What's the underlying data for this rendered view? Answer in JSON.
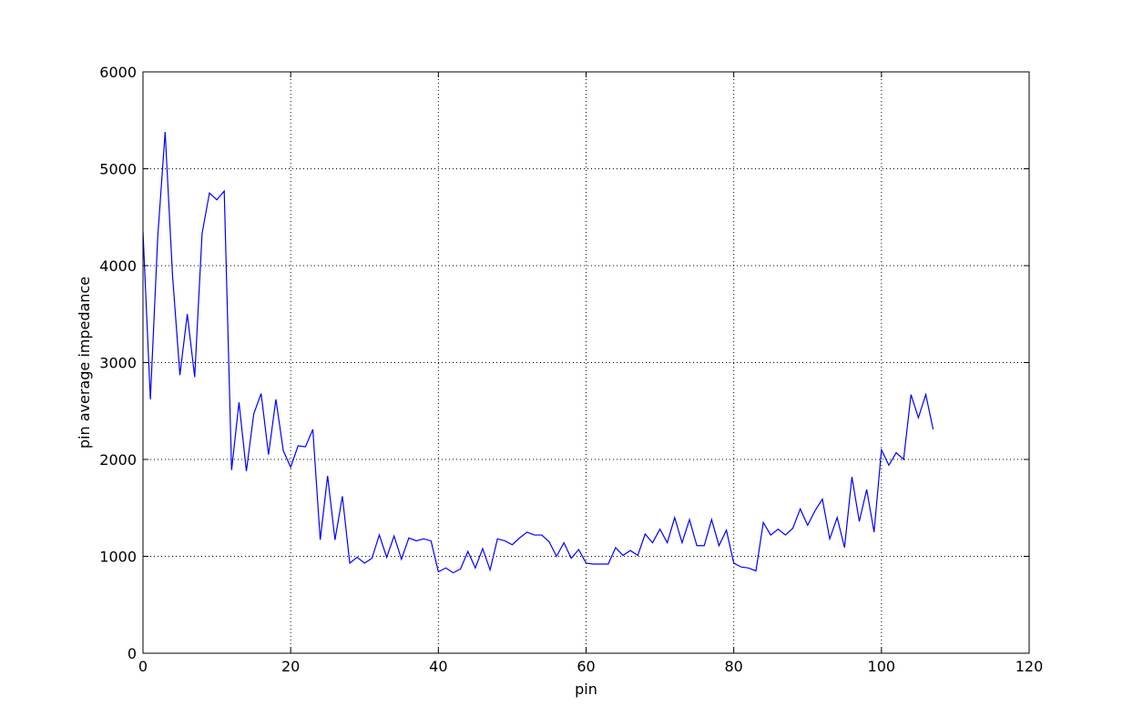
{
  "colors": {
    "series": "#0000ff",
    "axes": "#000000",
    "grid": "#000000",
    "background": "#ffffff"
  },
  "chart_data": {
    "type": "line",
    "title": "",
    "xlabel": "pin",
    "ylabel": "pin average impedance",
    "xlim": [
      0,
      120
    ],
    "ylim": [
      0,
      6000
    ],
    "xticks": [
      0,
      20,
      40,
      60,
      80,
      100,
      120
    ],
    "yticks": [
      0,
      1000,
      2000,
      3000,
      4000,
      5000,
      6000
    ],
    "xtick_labels": [
      "0",
      "20",
      "40",
      "60",
      "80",
      "100",
      "120"
    ],
    "ytick_labels": [
      "0",
      "1000",
      "2000",
      "3000",
      "4000",
      "5000",
      "6000"
    ],
    "grid": true,
    "grid_style": "dotted",
    "legend": "none",
    "series": [
      {
        "color": "#0000ff",
        "x": [
          0,
          1,
          2,
          3,
          4,
          5,
          6,
          7,
          8,
          9,
          10,
          11,
          12,
          13,
          14,
          15,
          16,
          17,
          18,
          19,
          20,
          21,
          22,
          23,
          24,
          25,
          26,
          27,
          28,
          29,
          30,
          31,
          32,
          33,
          34,
          35,
          36,
          37,
          38,
          39,
          40,
          41,
          42,
          43,
          44,
          45,
          46,
          47,
          48,
          49,
          50,
          51,
          52,
          53,
          54,
          55,
          56,
          57,
          58,
          59,
          60,
          61,
          62,
          63,
          64,
          65,
          66,
          67,
          68,
          69,
          70,
          71,
          72,
          73,
          74,
          75,
          76,
          77,
          78,
          79,
          80,
          81,
          82,
          83,
          84,
          85,
          86,
          87,
          88,
          89,
          90,
          91,
          92,
          93,
          94,
          95,
          96,
          97,
          98,
          99,
          100,
          101,
          102,
          103,
          104,
          105,
          106,
          107
        ],
        "y": [
          4350,
          2620,
          4300,
          5380,
          3900,
          2870,
          3500,
          2850,
          4330,
          4750,
          4680,
          4770,
          1890,
          2590,
          1880,
          2470,
          2680,
          2050,
          2620,
          2090,
          1920,
          2140,
          2130,
          2310,
          1170,
          1830,
          1170,
          1620,
          930,
          990,
          930,
          980,
          1220,
          990,
          1210,
          970,
          1190,
          1160,
          1180,
          1160,
          840,
          880,
          830,
          870,
          1050,
          880,
          1080,
          860,
          1180,
          1160,
          1120,
          1190,
          1250,
          1220,
          1220,
          1150,
          1000,
          1140,
          980,
          1070,
          930,
          920,
          920,
          920,
          1090,
          1010,
          1060,
          1010,
          1230,
          1140,
          1280,
          1140,
          1400,
          1140,
          1380,
          1110,
          1110,
          1380,
          1110,
          1270,
          930,
          890,
          880,
          850,
          1350,
          1220,
          1280,
          1220,
          1290,
          1490,
          1320,
          1470,
          1590,
          1180,
          1400,
          1090,
          1820,
          1360,
          1690,
          1250,
          2100,
          1940,
          2070,
          2000,
          2670,
          2430,
          2670,
          2310
        ]
      }
    ]
  }
}
